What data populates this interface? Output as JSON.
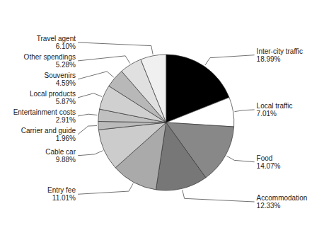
{
  "chart_data": {
    "type": "pie",
    "categories": [
      "Inter-city traffic",
      "Local traffic",
      "Food",
      "Accommodation",
      "Entry fee",
      "Cable car",
      "Carrier and guide",
      "Entertainment costs",
      "Local products",
      "Souvenirs",
      "Other spendings",
      "Travel agent"
    ],
    "values": [
      18.99,
      7.01,
      14.07,
      12.33,
      11.01,
      9.88,
      1.96,
      2.91,
      5.87,
      4.59,
      5.28,
      6.1
    ],
    "value_labels": [
      "18.99%",
      "7.01%",
      "14.07%",
      "12.33%",
      "11.01%",
      "9.88%",
      "1.96%",
      "2.91%",
      "5.87%",
      "4.59%",
      "5.28%",
      "6.10%"
    ],
    "colors": [
      "#000000",
      "#ffffff",
      "#888888",
      "#777777",
      "#aaaaaa",
      "#cccccc",
      "#bbbbbb",
      "#c0c0c0",
      "#d0d0d0",
      "#b8b8b8",
      "#e0e0e0",
      "#f0f0f0"
    ],
    "data_labels": true
  }
}
